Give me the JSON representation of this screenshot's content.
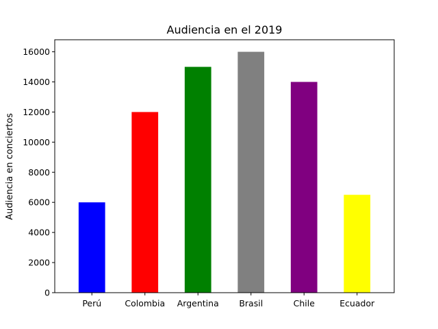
{
  "chart_data": {
    "type": "bar",
    "title": "Audiencia en el 2019",
    "xlabel": "",
    "ylabel": "Audiencia en conciertos",
    "categories": [
      "Perú",
      "Colombia",
      "Argentina",
      "Brasil",
      "Chile",
      "Ecuador"
    ],
    "values": [
      6000,
      12000,
      15000,
      16000,
      14000,
      6500
    ],
    "colors": [
      "#0000ff",
      "#ff0000",
      "#008000",
      "#808080",
      "#800080",
      "#ffff00"
    ],
    "ylim": [
      0,
      16800
    ],
    "yticks": [
      0,
      2000,
      4000,
      6000,
      8000,
      10000,
      12000,
      14000,
      16000
    ],
    "ytick_labels": [
      "0",
      "2000",
      "4000",
      "6000",
      "8000",
      "10000",
      "12000",
      "14000",
      "16000"
    ],
    "grid": false,
    "legend": false
  }
}
